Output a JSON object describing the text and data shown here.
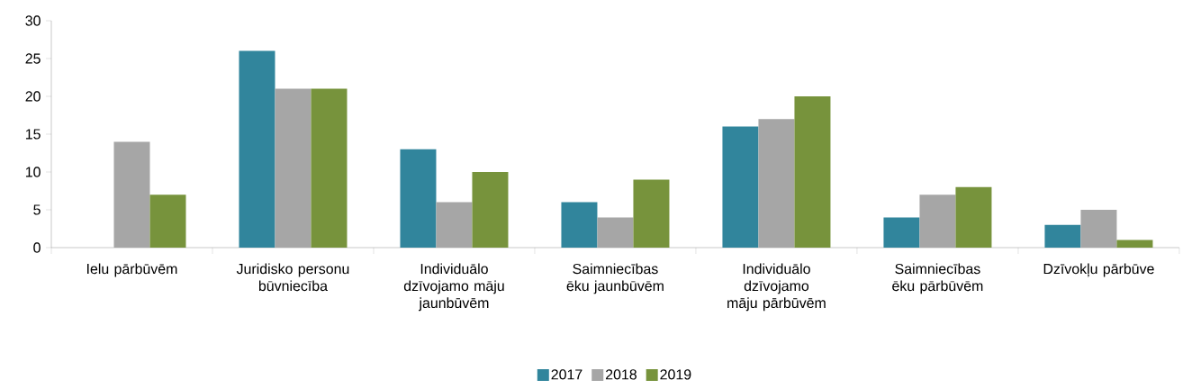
{
  "chart_data": {
    "type": "bar",
    "categories": [
      "Ielu pārbūvēm",
      "Juridisko personu būvniecība",
      "Individuālo dzīvojamo māju jaunbūvēm",
      "Saimniecības ēku jaunbūvēm",
      "Individuālo dzīvojamo māju pārbūvēm",
      "Saimniecības ēku pārbūvēm",
      "Dzīvokļu pārbūve"
    ],
    "series": [
      {
        "name": "2017",
        "color": "#31859c",
        "values": [
          null,
          26,
          13,
          6,
          16,
          4,
          3
        ]
      },
      {
        "name": "2018",
        "color": "#a6a6a6",
        "values": [
          14,
          21,
          6,
          4,
          17,
          7,
          5
        ]
      },
      {
        "name": "2019",
        "color": "#77933c",
        "values": [
          7,
          21,
          10,
          9,
          20,
          8,
          1
        ]
      }
    ],
    "ylim": [
      0,
      30
    ],
    "yticks": [
      0,
      5,
      10,
      15,
      20,
      25,
      30
    ],
    "legend": "bottom",
    "grid": false
  }
}
